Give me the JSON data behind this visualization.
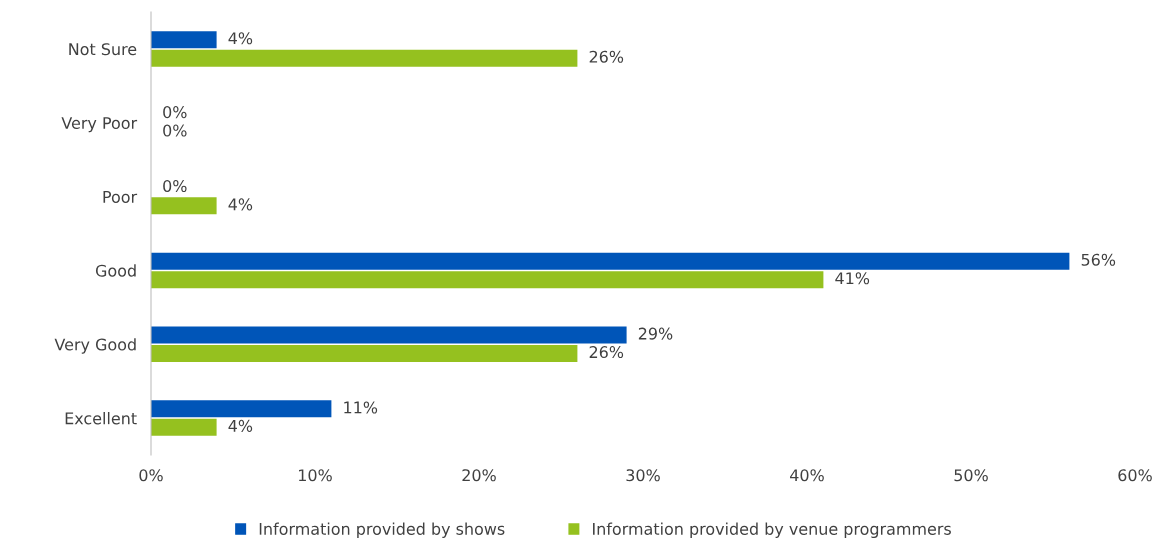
{
  "chart_data": {
    "type": "bar",
    "orientation": "horizontal",
    "categories": [
      "Not Sure",
      "Very Poor",
      "Poor",
      "Good",
      "Very Good",
      "Excellent"
    ],
    "series": [
      {
        "name": "Information provided by shows",
        "color": "#0055b8",
        "values": [
          4,
          0,
          0,
          56,
          29,
          11
        ],
        "value_labels": [
          "4%",
          "0%",
          "0%",
          "56%",
          "29%",
          "11%"
        ]
      },
      {
        "name": "Information provided by venue programmers",
        "color": "#95c11f",
        "values": [
          26,
          0,
          4,
          41,
          26,
          4
        ],
        "value_labels": [
          "26%",
          "0%",
          "4%",
          "41%",
          "26%",
          "4%"
        ]
      }
    ],
    "xlim": [
      0,
      60
    ],
    "xticks": [
      {
        "value": 0,
        "label": "0%"
      },
      {
        "value": 10,
        "label": "10%"
      },
      {
        "value": 20,
        "label": "20%"
      },
      {
        "value": 30,
        "label": "30%"
      },
      {
        "value": 40,
        "label": "40%"
      },
      {
        "value": 50,
        "label": "50%"
      },
      {
        "value": 60,
        "label": "60%"
      }
    ],
    "grid": false,
    "legend": "bottom"
  }
}
